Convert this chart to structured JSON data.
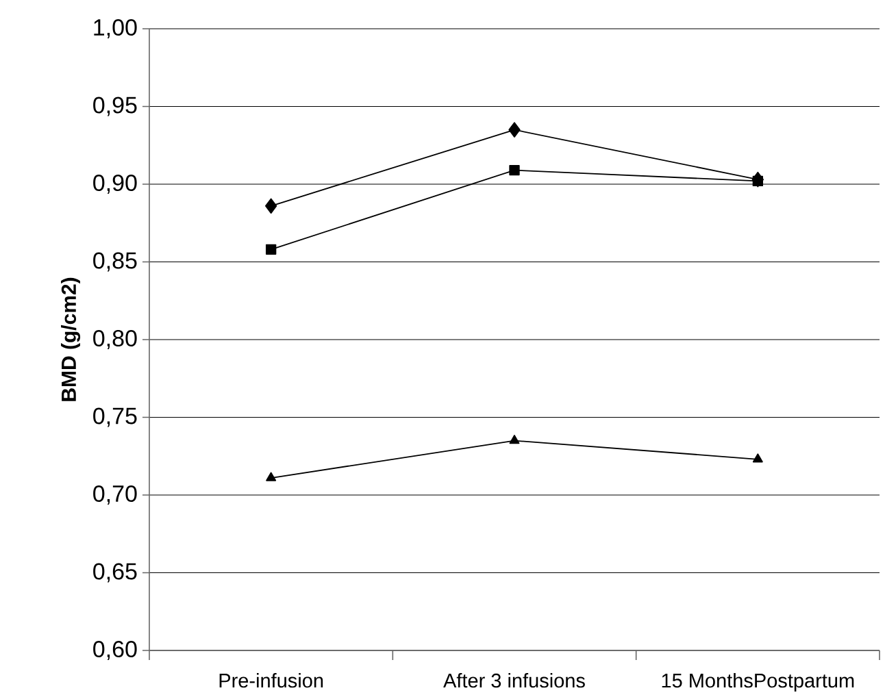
{
  "chart_data": {
    "type": "line",
    "ylabel": "BMD (g/cm2)",
    "categories": [
      "Pre-infusion",
      "After 3 infusions",
      "15 MonthsPostpartum"
    ],
    "series": [
      {
        "color": "#000000",
        "marker": "diamond",
        "values": [
          0.886,
          0.935,
          0.903
        ]
      },
      {
        "color": "#000000",
        "marker": "square",
        "values": [
          0.858,
          0.909,
          0.902
        ]
      },
      {
        "color": "#000000",
        "marker": "triangle",
        "values": [
          0.711,
          0.735,
          0.723
        ]
      }
    ],
    "ylim": [
      0.6,
      1.0
    ],
    "yticks": [
      {
        "value": 0.6,
        "label": "0,60"
      },
      {
        "value": 0.65,
        "label": "0,65"
      },
      {
        "value": 0.7,
        "label": "0,70"
      },
      {
        "value": 0.75,
        "label": "0,75"
      },
      {
        "value": 0.8,
        "label": "0,80"
      },
      {
        "value": 0.85,
        "label": "0,85"
      },
      {
        "value": 0.9,
        "label": "0,90"
      },
      {
        "value": 0.95,
        "label": "0,95"
      },
      {
        "value": 1.0,
        "label": "1,00"
      }
    ],
    "grid": "y",
    "line_style": "solid"
  }
}
